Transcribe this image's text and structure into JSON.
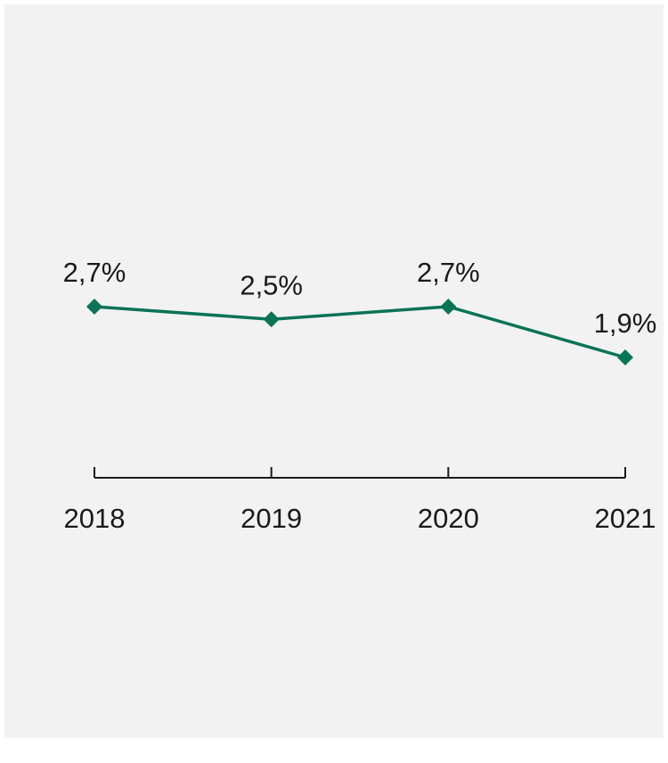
{
  "chart_data": {
    "type": "line",
    "categories": [
      "2018",
      "2019",
      "2020",
      "2021"
    ],
    "series": [
      {
        "values": [
          2.7,
          2.5,
          2.7,
          1.9
        ],
        "labels": [
          "2,7%",
          "2,5%",
          "2,7%",
          "1,9%"
        ],
        "color": "#0b7356",
        "marker": "diamond"
      }
    ],
    "title": "",
    "xlabel": "",
    "ylabel": "",
    "grid": false,
    "legend": "none"
  },
  "colors": {
    "panel_background": "#f2f2f2",
    "series_line": "#0b7356",
    "axis": "#1a1a1a"
  }
}
